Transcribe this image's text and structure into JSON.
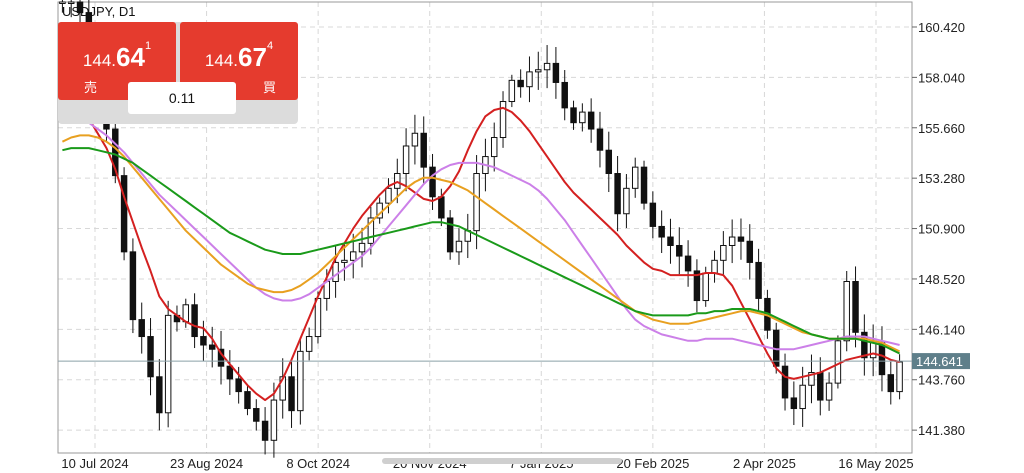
{
  "header": {
    "symbol": "USDJPY, D1"
  },
  "trade_panel": {
    "sell": {
      "price_small": "144.",
      "price_big": "64",
      "price_sup": "1",
      "label": "売"
    },
    "buy": {
      "price_small": "144.",
      "price_big": "67",
      "price_sup": "4",
      "label": "買"
    },
    "spread": "0.11"
  },
  "colors": {
    "ma_short": "#d42020",
    "ma_mid": "#e8a020",
    "ma_long": "#1a9a1a",
    "ma_violet": "#cc80e8",
    "candle": "#111111",
    "price_line": "#8aa0a8",
    "price_tag": "#5f7f8a"
  },
  "chart_data": {
    "type": "candlestick",
    "symbol": "USDJPY",
    "timeframe": "D1",
    "x_ticks": [
      "10 Jul 2024",
      "23 Aug 2024",
      "8 Oct 2024",
      "20 Nov 2024",
      "7 Jan 2025",
      "20 Feb 2025",
      "2 Apr 2025",
      "16 May 2025"
    ],
    "y_ticks": [
      "160.420",
      "158.040",
      "155.660",
      "153.280",
      "150.900",
      "148.520",
      "146.140",
      "143.760",
      "141.380"
    ],
    "current_price": "144.641",
    "ylim": [
      140.3,
      161.6
    ],
    "grid": true,
    "closes": [
      161.6,
      161.6,
      161.1,
      159.2,
      157.4,
      155.6,
      153.4,
      149.8,
      146.6,
      145.8,
      143.9,
      142.2,
      146.8,
      146.5,
      147.3,
      145.8,
      145.4,
      145.2,
      144.4,
      143.8,
      143.2,
      142.4,
      141.8,
      140.9,
      142.8,
      143.9,
      142.3,
      145.1,
      145.8,
      147.6,
      148.4,
      149.3,
      149.4,
      149.8,
      150.2,
      151.4,
      152.1,
      152.8,
      153.5,
      154.8,
      155.4,
      153.8,
      152.4,
      151.4,
      149.8,
      150.3,
      150.8,
      153.5,
      154.3,
      155.2,
      156.9,
      157.9,
      157.6,
      158.3,
      158.4,
      158.7,
      157.8,
      156.6,
      155.9,
      156.4,
      155.6,
      154.6,
      153.5,
      151.6,
      152.8,
      153.8,
      152.1,
      151.0,
      150.5,
      150.1,
      149.6,
      148.9,
      147.5,
      148.8,
      149.4,
      150.1,
      150.5,
      150.3,
      149.3,
      147.6,
      146.1,
      144.4,
      142.9,
      142.4,
      143.5,
      144.1,
      142.8,
      143.6,
      145.6,
      148.4,
      146.0,
      144.8,
      145.5,
      144.0,
      143.2,
      144.6
    ],
    "moving_averages": [
      {
        "color": "#d42020",
        "values": [
          157.1,
          157.0,
          156.7,
          156.1,
          155.4,
          154.7,
          153.7,
          152.4,
          151.2,
          150.0,
          148.9,
          147.7,
          147.1,
          146.8,
          146.5,
          146.3,
          146.2,
          145.7,
          145.0,
          144.5,
          144.0,
          143.5,
          143.1,
          142.8,
          143.1,
          143.8,
          144.7,
          145.7,
          146.7,
          147.7,
          148.6,
          149.5,
          150.2,
          150.9,
          151.5,
          152.0,
          152.5,
          152.9,
          153.1,
          152.9,
          152.6,
          152.3,
          152.2,
          152.4,
          152.9,
          153.6,
          154.6,
          155.5,
          156.2,
          156.5,
          156.6,
          156.4,
          156.0,
          155.5,
          154.9,
          154.3,
          153.7,
          153.1,
          152.6,
          152.2,
          151.8,
          151.4,
          151.0,
          150.6,
          150.1,
          149.7,
          149.3,
          149.0,
          148.9,
          148.7,
          148.7,
          148.7,
          148.7,
          148.8,
          148.8,
          148.7,
          148.2,
          147.4,
          146.6,
          145.8,
          145.0,
          144.3,
          143.9,
          143.8,
          143.9,
          144.0,
          144.1,
          144.3,
          144.5,
          144.7,
          144.8,
          144.9,
          145.0,
          144.9,
          144.7,
          144.6
        ]
      },
      {
        "color": "#cc80e8",
        "values": [
          156.2,
          156.2,
          156.1,
          155.9,
          155.6,
          155.3,
          154.9,
          154.5,
          154.0,
          153.5,
          153.0,
          152.5,
          152.1,
          151.7,
          151.3,
          150.9,
          150.5,
          150.1,
          149.7,
          149.3,
          148.9,
          148.5,
          148.1,
          147.8,
          147.6,
          147.5,
          147.5,
          147.6,
          147.8,
          148.1,
          148.4,
          148.7,
          149.0,
          149.3,
          149.6,
          150.0,
          150.5,
          151.0,
          151.5,
          152.0,
          152.5,
          153.0,
          153.4,
          153.7,
          153.9,
          154.0,
          154.0,
          154.0,
          153.9,
          153.8,
          153.6,
          153.4,
          153.2,
          153.0,
          152.7,
          152.3,
          151.8,
          151.3,
          150.7,
          150.1,
          149.5,
          148.9,
          148.3,
          147.7,
          147.1,
          146.6,
          146.3,
          146.1,
          145.9,
          145.8,
          145.7,
          145.6,
          145.6,
          145.7,
          145.7,
          145.7,
          145.7,
          145.6,
          145.5,
          145.4,
          145.3,
          145.2,
          145.2,
          145.2,
          145.3,
          145.4,
          145.5,
          145.6,
          145.7,
          145.8,
          145.8,
          145.8,
          145.7,
          145.6,
          145.5,
          145.4
        ]
      },
      {
        "color": "#e8a020",
        "values": [
          155.0,
          155.2,
          155.3,
          155.3,
          155.2,
          155.0,
          154.7,
          154.3,
          153.8,
          153.3,
          152.8,
          152.3,
          151.8,
          151.3,
          150.8,
          150.4,
          150.0,
          149.6,
          149.2,
          148.9,
          148.6,
          148.3,
          148.1,
          148.0,
          147.9,
          147.9,
          148.0,
          148.2,
          148.5,
          148.8,
          149.2,
          149.6,
          150.0,
          150.4,
          150.8,
          151.2,
          151.6,
          152.0,
          152.4,
          152.8,
          153.1,
          153.3,
          153.3,
          153.2,
          153.1,
          152.9,
          152.7,
          152.4,
          152.1,
          151.8,
          151.5,
          151.2,
          150.9,
          150.6,
          150.3,
          150.0,
          149.7,
          149.4,
          149.1,
          148.8,
          148.5,
          148.2,
          147.9,
          147.6,
          147.3,
          147.0,
          146.8,
          146.6,
          146.5,
          146.4,
          146.4,
          146.4,
          146.5,
          146.6,
          146.7,
          146.8,
          146.9,
          147.0,
          147.0,
          146.9,
          146.8,
          146.6,
          146.4,
          146.2,
          146.0,
          145.9,
          145.8,
          145.7,
          145.7,
          145.7,
          145.7,
          145.7,
          145.6,
          145.5,
          145.3,
          145.1
        ]
      },
      {
        "color": "#1a9a1a",
        "values": [
          154.6,
          154.7,
          154.7,
          154.7,
          154.6,
          154.5,
          154.4,
          154.2,
          154.0,
          153.7,
          153.4,
          153.1,
          152.8,
          152.5,
          152.2,
          151.9,
          151.6,
          151.3,
          151.0,
          150.7,
          150.5,
          150.3,
          150.1,
          149.9,
          149.8,
          149.7,
          149.7,
          149.7,
          149.8,
          149.9,
          150.0,
          150.1,
          150.2,
          150.3,
          150.4,
          150.5,
          150.6,
          150.7,
          150.8,
          150.9,
          151.0,
          151.1,
          151.2,
          151.2,
          151.1,
          151.0,
          150.8,
          150.6,
          150.4,
          150.2,
          150.0,
          149.8,
          149.6,
          149.4,
          149.2,
          149.0,
          148.8,
          148.6,
          148.4,
          148.2,
          148.0,
          147.8,
          147.6,
          147.4,
          147.2,
          147.0,
          146.9,
          146.8,
          146.8,
          146.8,
          146.8,
          146.8,
          146.9,
          146.9,
          147.0,
          147.0,
          147.1,
          147.1,
          147.1,
          147.0,
          146.9,
          146.7,
          146.5,
          146.3,
          146.1,
          145.9,
          145.8,
          145.7,
          145.7,
          145.7,
          145.7,
          145.6,
          145.5,
          145.4,
          145.2,
          145.0
        ]
      }
    ]
  }
}
